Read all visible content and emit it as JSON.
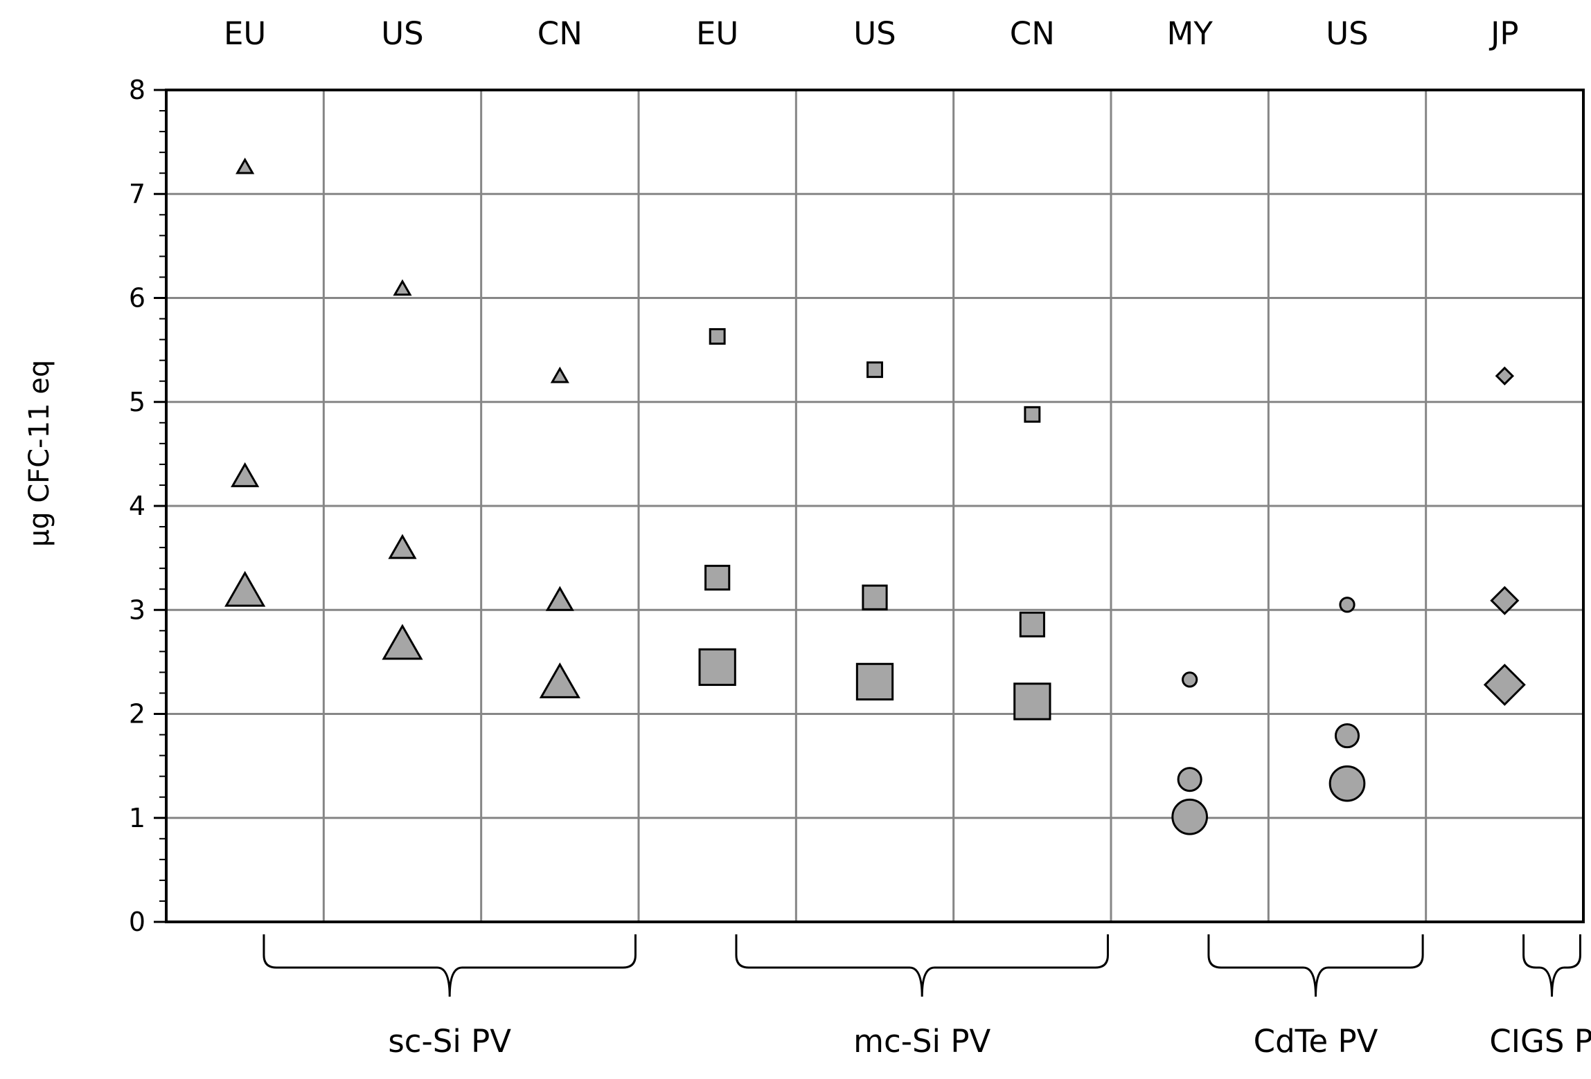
{
  "chart_data": {
    "type": "scatter",
    "title": "",
    "xlabel": "",
    "ylabel": "µg CFC-11 eq",
    "ylim": [
      0,
      8
    ],
    "yticks": [
      0,
      1,
      2,
      3,
      4,
      5,
      6,
      7,
      8
    ],
    "y_minor_ticks_per_major": 5,
    "grid": true,
    "legend": "none",
    "marker_fill": "#a6a6a6",
    "marker_stroke": "#000000",
    "grid_color": "#868686",
    "categories": [
      "EU",
      "US",
      "CN",
      "EU",
      "US",
      "CN",
      "MY",
      "US",
      "JP"
    ],
    "groups": [
      {
        "label": "sc-Si PV",
        "span": [
          0,
          2
        ],
        "marker": "triangle"
      },
      {
        "label": "mc-Si PV",
        "span": [
          3,
          5
        ],
        "marker": "square"
      },
      {
        "label": "CdTe PV",
        "span": [
          6,
          7
        ],
        "marker": "circle"
      },
      {
        "label": "CIGS PV",
        "span": [
          8,
          8
        ],
        "marker": "diamond"
      }
    ],
    "points": [
      {
        "category_index": 0,
        "marker": "triangle",
        "size": "small",
        "y": 7.25
      },
      {
        "category_index": 0,
        "marker": "triangle",
        "size": "medium",
        "y": 4.27
      },
      {
        "category_index": 0,
        "marker": "triangle",
        "size": "large",
        "y": 3.16
      },
      {
        "category_index": 1,
        "marker": "triangle",
        "size": "small",
        "y": 6.08
      },
      {
        "category_index": 1,
        "marker": "triangle",
        "size": "medium",
        "y": 3.58
      },
      {
        "category_index": 1,
        "marker": "triangle",
        "size": "large",
        "y": 2.65
      },
      {
        "category_index": 2,
        "marker": "triangle",
        "size": "small",
        "y": 5.24
      },
      {
        "category_index": 2,
        "marker": "triangle",
        "size": "medium",
        "y": 3.08
      },
      {
        "category_index": 2,
        "marker": "triangle",
        "size": "large",
        "y": 2.28
      },
      {
        "category_index": 3,
        "marker": "square",
        "size": "small",
        "y": 5.63
      },
      {
        "category_index": 3,
        "marker": "square",
        "size": "medium",
        "y": 3.31
      },
      {
        "category_index": 3,
        "marker": "square",
        "size": "large",
        "y": 2.45
      },
      {
        "category_index": 4,
        "marker": "square",
        "size": "small",
        "y": 5.31
      },
      {
        "category_index": 4,
        "marker": "square",
        "size": "medium",
        "y": 3.12
      },
      {
        "category_index": 4,
        "marker": "square",
        "size": "large",
        "y": 2.31
      },
      {
        "category_index": 5,
        "marker": "square",
        "size": "small",
        "y": 4.88
      },
      {
        "category_index": 5,
        "marker": "square",
        "size": "medium",
        "y": 2.86
      },
      {
        "category_index": 5,
        "marker": "square",
        "size": "large",
        "y": 2.12
      },
      {
        "category_index": 6,
        "marker": "circle",
        "size": "small",
        "y": 2.33
      },
      {
        "category_index": 6,
        "marker": "circle",
        "size": "medium",
        "y": 1.37
      },
      {
        "category_index": 6,
        "marker": "circle",
        "size": "large",
        "y": 1.01
      },
      {
        "category_index": 7,
        "marker": "circle",
        "size": "small",
        "y": 3.05
      },
      {
        "category_index": 7,
        "marker": "circle",
        "size": "medium",
        "y": 1.79
      },
      {
        "category_index": 7,
        "marker": "circle",
        "size": "large",
        "y": 1.33
      },
      {
        "category_index": 8,
        "marker": "diamond",
        "size": "small",
        "y": 5.25
      },
      {
        "category_index": 8,
        "marker": "diamond",
        "size": "medium",
        "y": 3.09
      },
      {
        "category_index": 8,
        "marker": "diamond",
        "size": "large",
        "y": 2.28
      }
    ]
  }
}
